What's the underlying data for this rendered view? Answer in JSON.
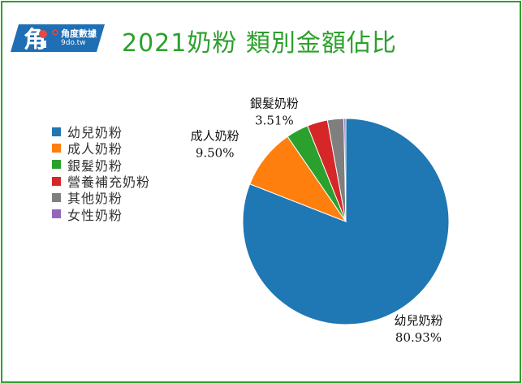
{
  "logo": {
    "name": "角度數據",
    "url": "9do.tw",
    "bg_color": "#1f6fb4"
  },
  "title": "2021奶粉 類別金額佔比",
  "colors": {
    "frame": "#2ca02c",
    "title": "#2ca02c"
  },
  "chart_data": {
    "type": "pie",
    "title": "2021奶粉 類別金額佔比",
    "legend_position": "left",
    "start_angle_deg": 90,
    "direction": "clockwise",
    "slices": [
      {
        "label": "幼兒奶粉",
        "value": 80.93,
        "display": "80.93%",
        "color": "#1f77b4",
        "show_label": true
      },
      {
        "label": "成人奶粉",
        "value": 9.5,
        "display": "9.50%",
        "color": "#ff7f0e",
        "show_label": true
      },
      {
        "label": "銀髮奶粉",
        "value": 3.51,
        "display": "3.51%",
        "color": "#2ca02c",
        "show_label": true
      },
      {
        "label": "營養補充奶粉",
        "value": 3.2,
        "display": "",
        "color": "#d62728",
        "show_label": false
      },
      {
        "label": "其他奶粉",
        "value": 2.56,
        "display": "",
        "color": "#7f7f7f",
        "show_label": false
      },
      {
        "label": "女性奶粉",
        "value": 0.3,
        "display": "",
        "color": "#9467bd",
        "show_label": false
      }
    ]
  }
}
